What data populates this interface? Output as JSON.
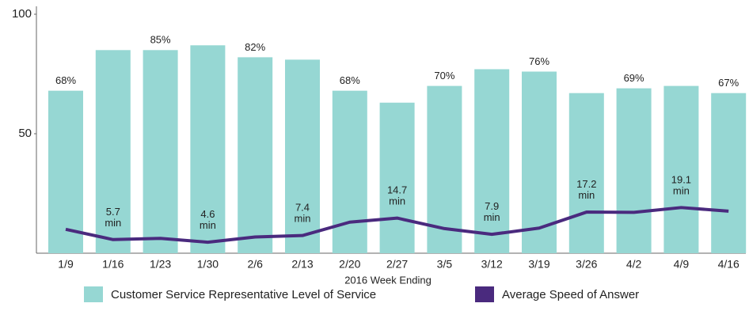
{
  "chart_data": {
    "type": "bar+line",
    "x_label": "2016 Week Ending",
    "categories": [
      "1/9",
      "1/16",
      "1/23",
      "1/30",
      "2/6",
      "2/13",
      "2/20",
      "2/27",
      "3/5",
      "3/12",
      "3/19",
      "3/26",
      "4/2",
      "4/9",
      "4/16"
    ],
    "ylim": [
      0,
      100
    ],
    "yticks": [
      50,
      100
    ],
    "series": [
      {
        "name": "Customer Service Representative Level of Service",
        "type": "bar",
        "color": "#96d7d3",
        "values": [
          68,
          85,
          85,
          87,
          82,
          81,
          68,
          63,
          70,
          77,
          76,
          67,
          69,
          70,
          67
        ],
        "value_labels": [
          "68%",
          null,
          "85%",
          null,
          "82%",
          null,
          "68%",
          null,
          "70%",
          null,
          "76%",
          null,
          "69%",
          null,
          "67%"
        ]
      },
      {
        "name": "Average Speed of Answer",
        "type": "line",
        "color": "#4a2a7e",
        "values": [
          10,
          5.7,
          6.2,
          4.6,
          6.8,
          7.4,
          13,
          14.7,
          10.3,
          7.9,
          10.5,
          17.2,
          17.1,
          19.1,
          17.6
        ],
        "value_labels": [
          null,
          "5.7 min",
          null,
          "4.6 min",
          null,
          "7.4 min",
          null,
          "14.7 min",
          null,
          "7.9 min",
          null,
          "17.2 min",
          null,
          "19.1 min",
          null
        ]
      }
    ],
    "legend": "bottom"
  }
}
